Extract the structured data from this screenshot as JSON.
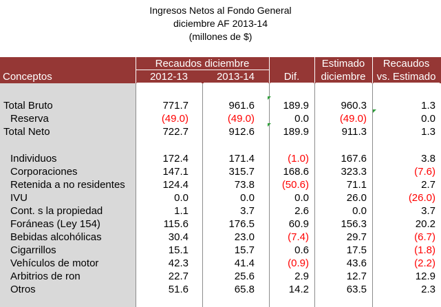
{
  "title": {
    "line1": "Ingresos Netos al Fondo General",
    "line2": "diciembre AF 2013-14",
    "line3": "(millones de $)"
  },
  "header": {
    "conceptos": "Conceptos",
    "recaudos_diciembre": "Recaudos diciembre",
    "year1": "2012-13",
    "year2": "2013-14",
    "dif": "Dif.",
    "estimado_1": "Estimado",
    "estimado_2": "diciembre",
    "recaudos_vs_1": "Recaudos",
    "recaudos_vs_2": "vs. Estimado"
  },
  "colors": {
    "header_bg": "#953735",
    "label_column_bg": "#d9d9d9",
    "negative_text": "#ff0000",
    "comment_marker": "#2e9e3a"
  },
  "rows": [
    {
      "label": "Total Bruto",
      "v1": "771.7",
      "v2": "961.6",
      "dif": "189.9",
      "est": "960.3",
      "vs": "1.3"
    },
    {
      "label": "Reserva",
      "v1": "(49.0)",
      "v2": "(49.0)",
      "dif": "0.0",
      "est": "(49.0)",
      "vs": "0.0"
    },
    {
      "label": "Total Neto",
      "v1": "722.7",
      "v2": "912.6",
      "dif": "189.9",
      "est": "911.3",
      "vs": "1.3"
    },
    {
      "label": "Individuos",
      "v1": "172.4",
      "v2": "171.4",
      "dif": "(1.0)",
      "est": "167.6",
      "vs": "3.8"
    },
    {
      "label": "Corporaciones",
      "v1": "147.1",
      "v2": "315.7",
      "dif": "168.6",
      "est": "323.3",
      "vs": "(7.6)"
    },
    {
      "label": "Retenida a no residentes",
      "v1": "124.4",
      "v2": "73.8",
      "dif": "(50.6)",
      "est": "71.1",
      "vs": "2.7"
    },
    {
      "label": "IVU",
      "v1": "0.0",
      "v2": "0.0",
      "dif": "0.0",
      "est": "26.0",
      "vs": "(26.0)"
    },
    {
      "label": "Cont. s la propiedad",
      "v1": "1.1",
      "v2": "3.7",
      "dif": "2.6",
      "est": "0.0",
      "vs": "3.7"
    },
    {
      "label": "Foráneas (Ley 154)",
      "v1": "115.6",
      "v2": "176.5",
      "dif": "60.9",
      "est": "156.3",
      "vs": "20.2"
    },
    {
      "label": "Bebidas alcohólicas",
      "v1": "30.4",
      "v2": "23.0",
      "dif": "(7.4)",
      "est": "29.7",
      "vs": "(6.7)"
    },
    {
      "label": "Cigarrillos",
      "v1": "15.1",
      "v2": "15.7",
      "dif": "0.6",
      "est": "17.5",
      "vs": "(1.8)"
    },
    {
      "label": "Vehículos de motor",
      "v1": "42.3",
      "v2": "41.4",
      "dif": "(0.9)",
      "est": "43.6",
      "vs": "(2.2)"
    },
    {
      "label": "Arbitrios de ron",
      "v1": "22.7",
      "v2": "25.6",
      "dif": "2.9",
      "est": "12.7",
      "vs": "12.9"
    },
    {
      "label": "Otros",
      "v1": "51.6",
      "v2": "65.8",
      "dif": "14.2",
      "est": "63.5",
      "vs": "2.3"
    }
  ]
}
